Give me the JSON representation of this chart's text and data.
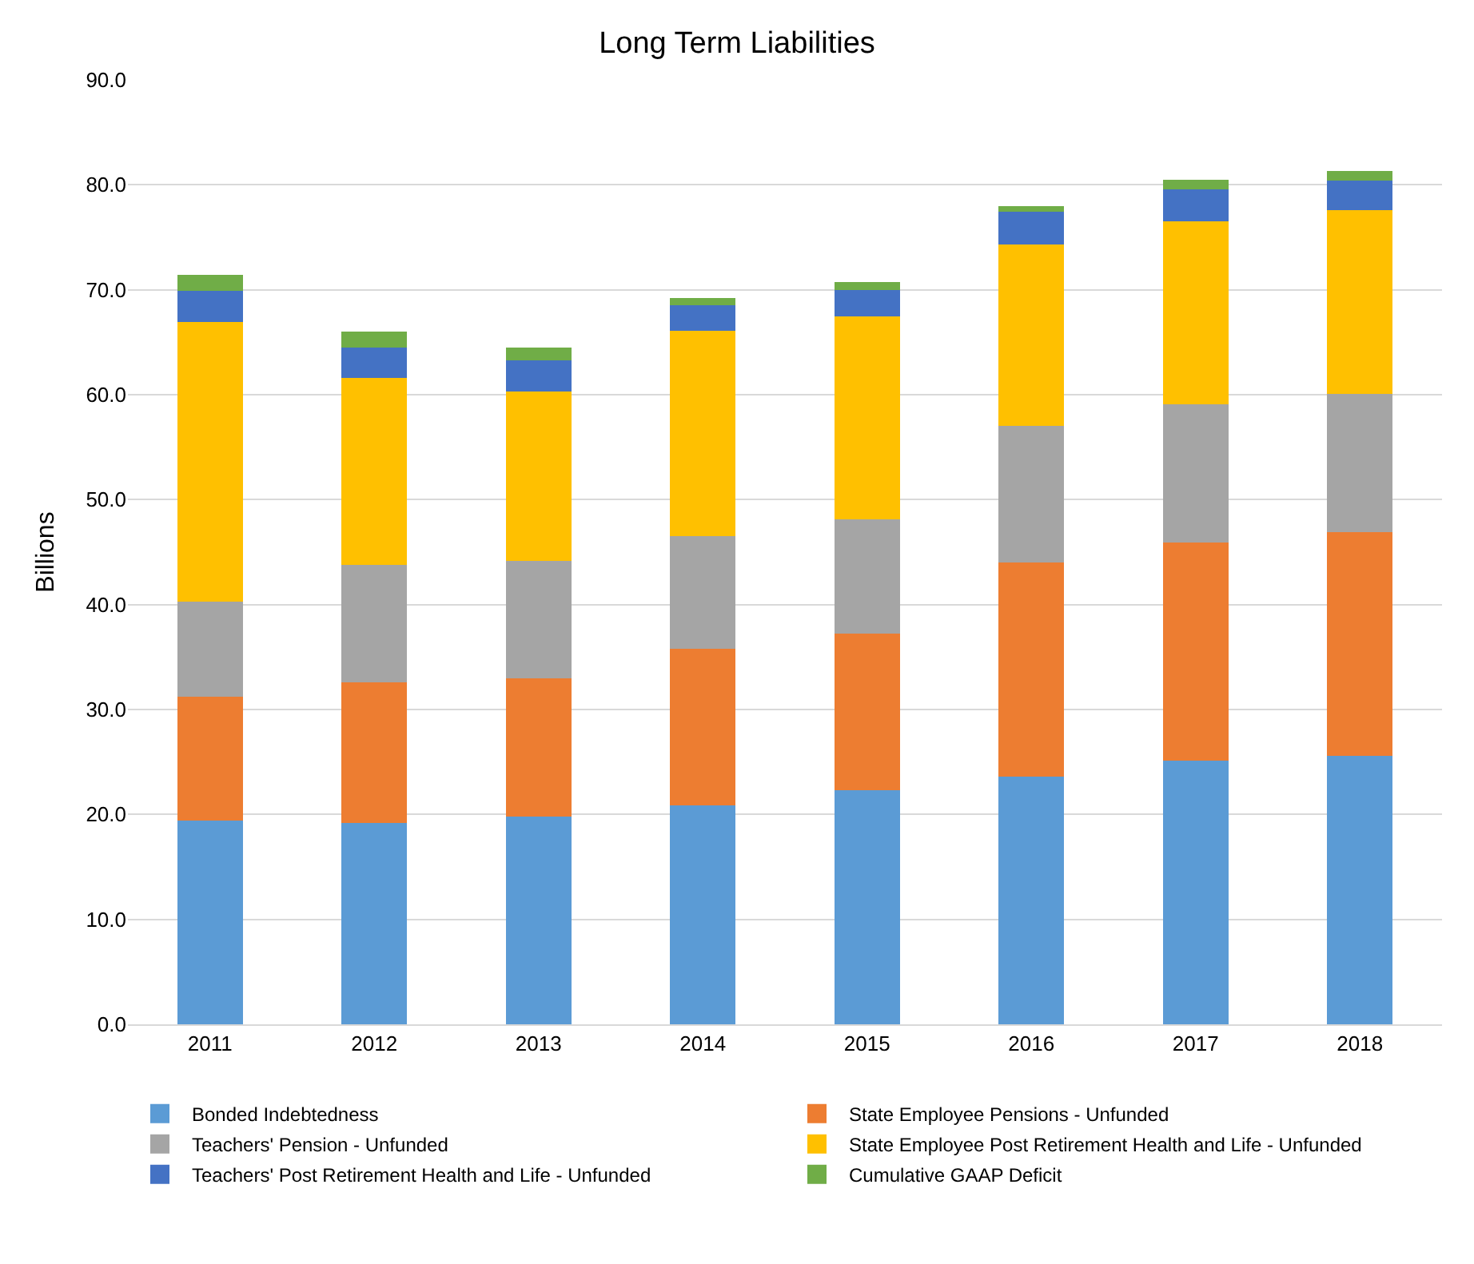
{
  "chart_data": {
    "type": "bar",
    "stacked": true,
    "title": "Long Term Liabilities",
    "ylabel": "Billions",
    "categories": [
      "2011",
      "2012",
      "2013",
      "2014",
      "2015",
      "2016",
      "2017",
      "2018"
    ],
    "series": [
      {
        "name": "Bonded Indebtedness",
        "color": "#5b9bd5",
        "values": [
          19.4,
          19.2,
          19.8,
          20.9,
          22.3,
          23.6,
          25.1,
          25.6
        ]
      },
      {
        "name": "State Employee Pensions - Unfunded",
        "color": "#ed7d31",
        "values": [
          11.8,
          13.4,
          13.2,
          14.9,
          14.9,
          20.4,
          20.8,
          21.3
        ]
      },
      {
        "name": "Teachers' Pension - Unfunded",
        "color": "#a5a5a5",
        "values": [
          9.1,
          11.2,
          11.2,
          10.7,
          10.9,
          13.0,
          13.2,
          13.2
        ]
      },
      {
        "name": "State Employee Post Retirement Health and Life - Unfunded",
        "color": "#ffc000",
        "values": [
          26.6,
          17.8,
          16.1,
          19.6,
          19.4,
          17.3,
          17.4,
          17.5
        ]
      },
      {
        "name": "Teachers' Post Retirement Health and Life - Unfunded",
        "color": "#4472c4",
        "values": [
          3.0,
          2.9,
          3.0,
          2.4,
          2.5,
          3.1,
          3.1,
          2.8
        ]
      },
      {
        "name": "Cumulative GAAP Deficit",
        "color": "#70ad47",
        "values": [
          1.5,
          1.5,
          1.2,
          0.7,
          0.7,
          0.6,
          0.9,
          0.9
        ]
      }
    ],
    "ylim": [
      0,
      90
    ],
    "yticks": [
      {
        "value": 0,
        "label": "0.0"
      },
      {
        "value": 10,
        "label": "10.0"
      },
      {
        "value": 20,
        "label": "20.0"
      },
      {
        "value": 30,
        "label": "30.0"
      },
      {
        "value": 40,
        "label": "40.0"
      },
      {
        "value": 50,
        "label": "50.0"
      },
      {
        "value": 60,
        "label": "60.0"
      },
      {
        "value": 70,
        "label": "70.0"
      },
      {
        "value": 80,
        "label": "80.0"
      },
      {
        "value": 90,
        "label": "90.0"
      }
    ],
    "grid": "y",
    "legend": "bottom"
  }
}
